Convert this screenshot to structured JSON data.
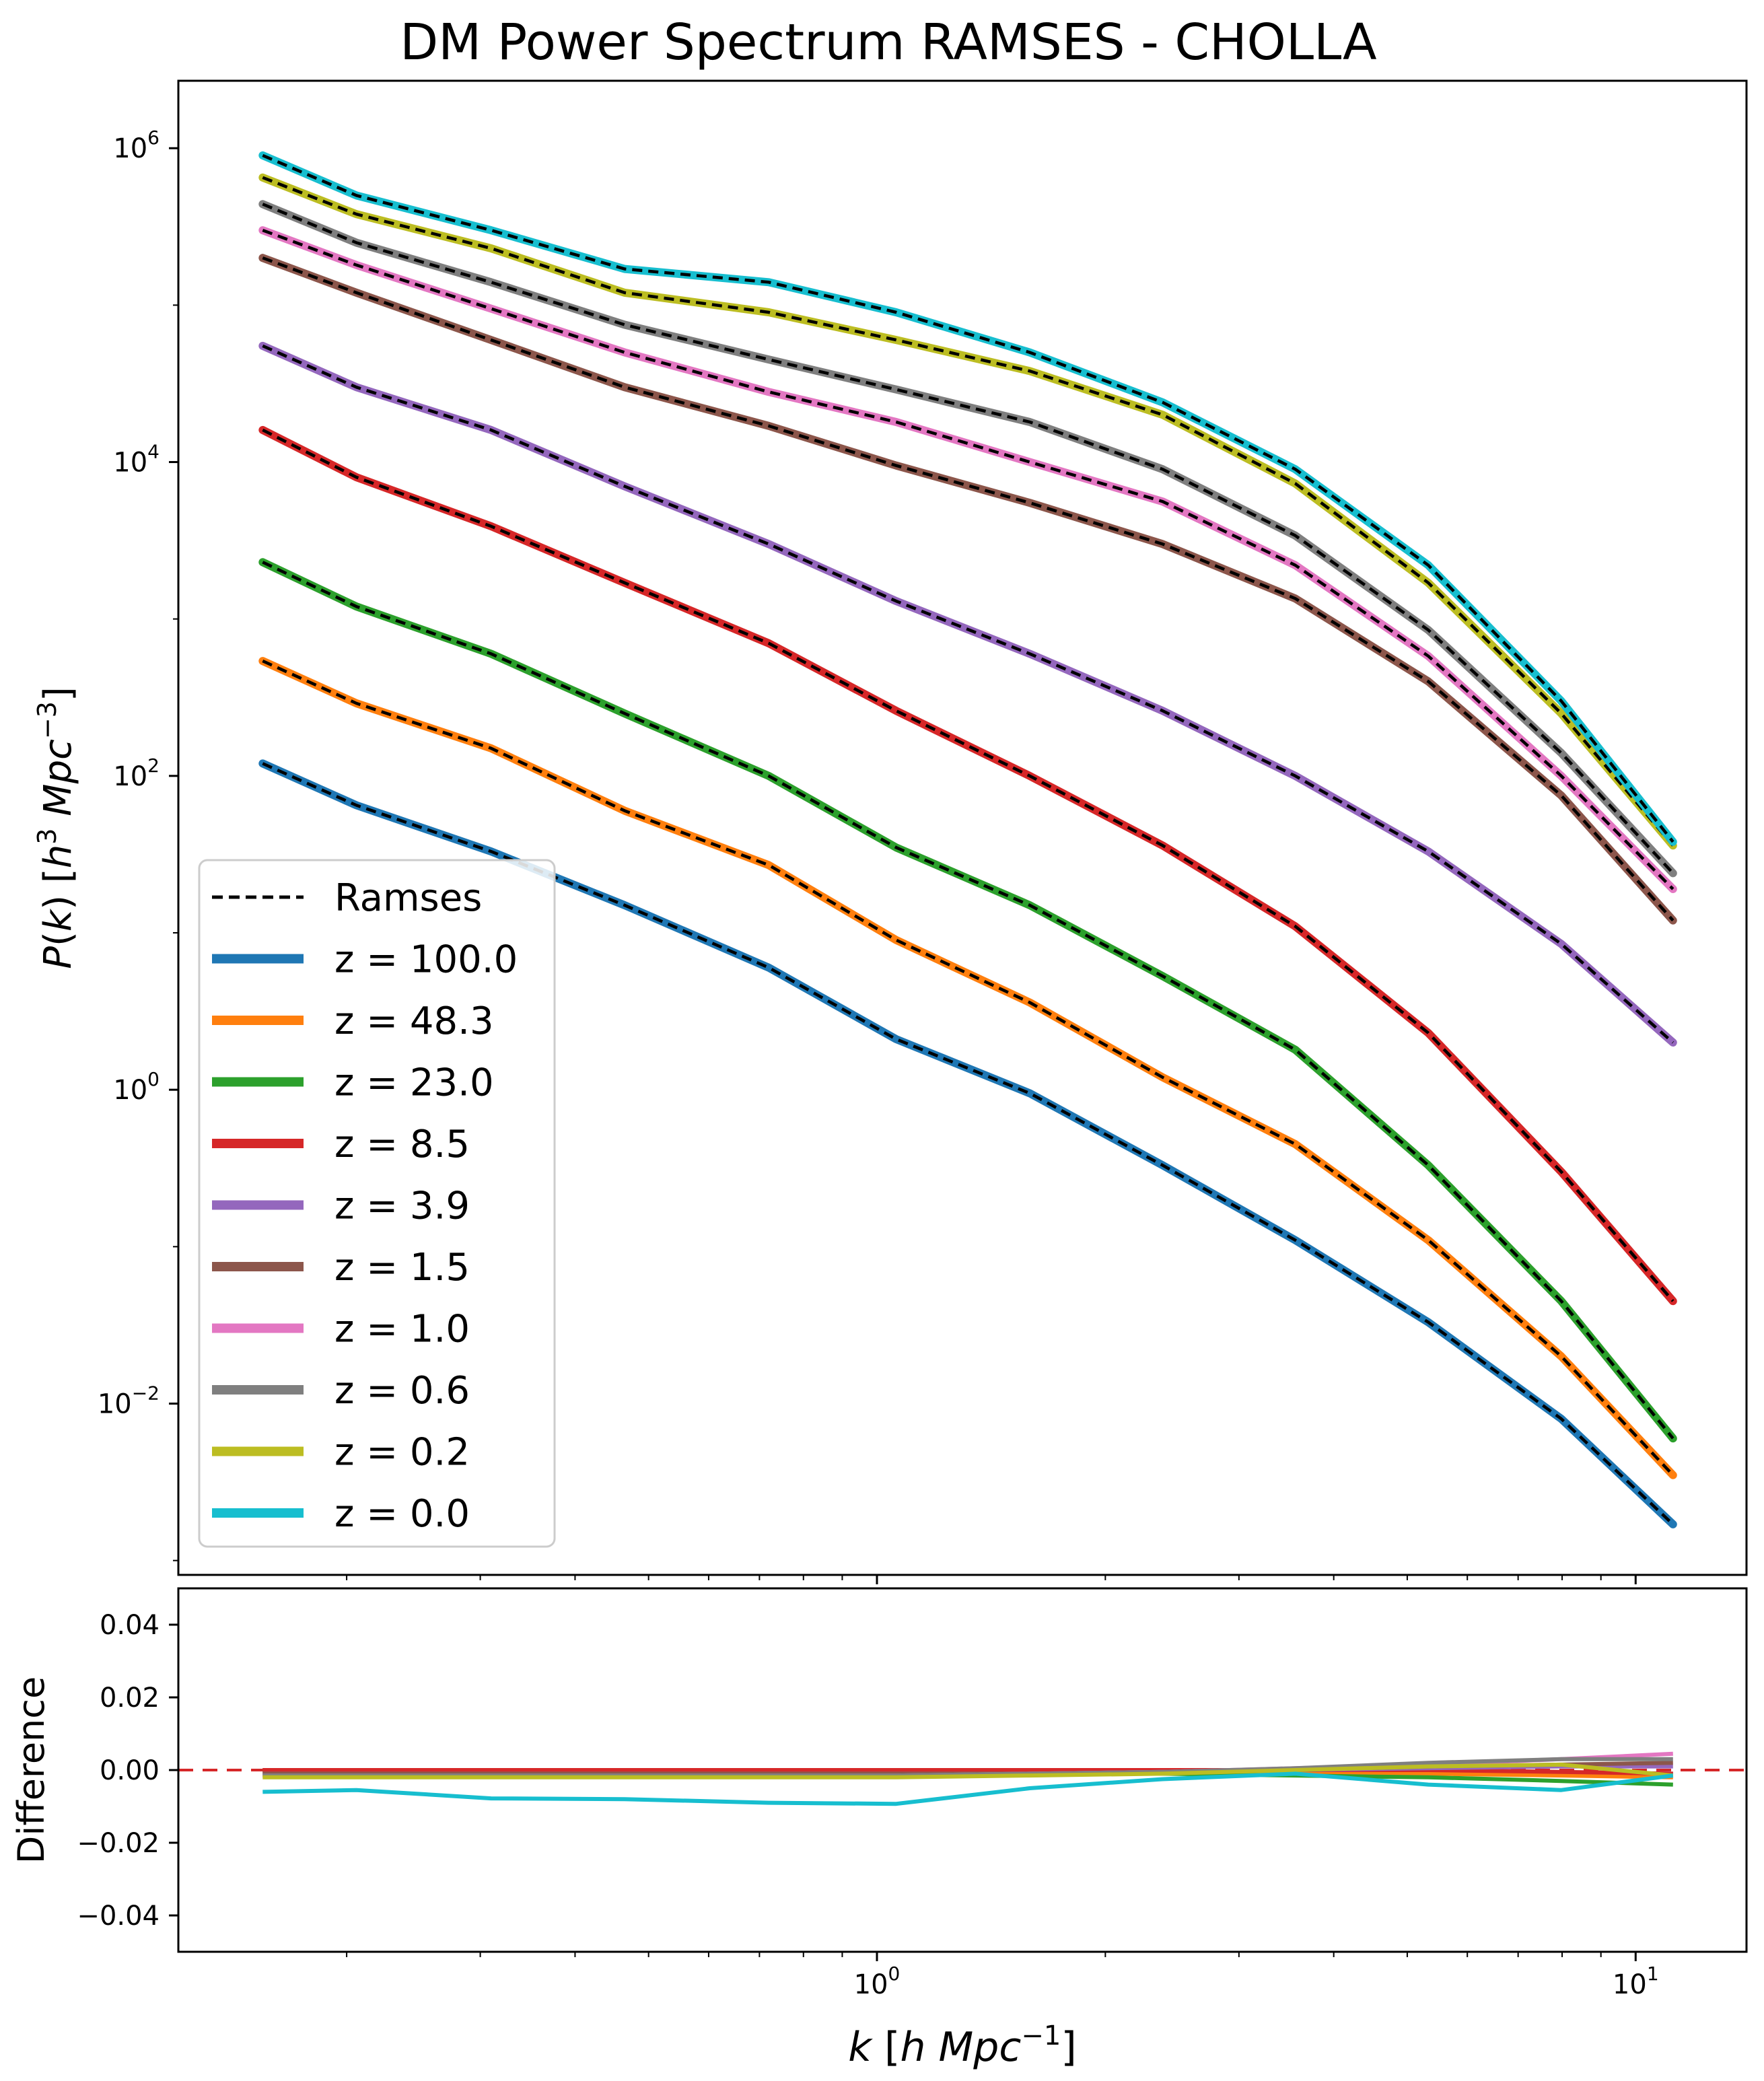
{
  "figure": {
    "title": "DM Power Spectrum RAMSES - CHOLLA"
  },
  "chart_data": [
    {
      "type": "line",
      "panel": "top",
      "title": "DM Power Spectrum RAMSES - CHOLLA",
      "xlabel": "k [h Mpc^-1]",
      "ylabel": "P(k) [h^3 Mpc^-3]",
      "xscale": "log",
      "yscale": "log",
      "xlim": [
        0.12,
        14.0
      ],
      "ylim": [
        0.00081,
        2690000
      ],
      "grid": false,
      "legend_position": "lower-left",
      "yticks": [
        {
          "value": 1000000,
          "base": "10",
          "exp": "6"
        },
        {
          "value": 10000,
          "base": "10",
          "exp": "4"
        },
        {
          "value": 100,
          "base": "10",
          "exp": "2"
        },
        {
          "value": 1,
          "base": "10",
          "exp": "0"
        },
        {
          "value": 0.01,
          "base": "10",
          "exp": "−2"
        }
      ],
      "x": [
        0.155,
        0.206,
        0.31,
        0.465,
        0.72,
        1.06,
        1.59,
        2.38,
        3.56,
        5.33,
        7.98,
        11.2
      ],
      "reference": {
        "name": "Ramses",
        "color": "#000000",
        "style": "dashed"
      },
      "series": [
        {
          "name": "z = 100.0",
          "color": "#1f77b4",
          "values": [
            120,
            65,
            33,
            15,
            6,
            2.1,
            0.95,
            0.33,
            0.11,
            0.033,
            0.008,
            0.0017
          ]
        },
        {
          "name": "z = 48.3",
          "color": "#ff7f0e",
          "values": [
            540,
            290,
            150,
            60,
            27,
            9,
            3.6,
            1.2,
            0.45,
            0.11,
            0.02,
            0.0035
          ]
        },
        {
          "name": "z = 23.0",
          "color": "#2ca02c",
          "values": [
            2300,
            1200,
            600,
            250,
            100,
            35,
            15,
            5.3,
            1.8,
            0.33,
            0.045,
            0.006
          ]
        },
        {
          "name": "z = 8.5",
          "color": "#d62728",
          "values": [
            16000,
            8000,
            3900,
            1700,
            700,
            260,
            100,
            36,
            11,
            2.3,
            0.3,
            0.045
          ]
        },
        {
          "name": "z = 3.9",
          "color": "#9467bd",
          "values": [
            55000,
            30000,
            16000,
            7000,
            3000,
            1300,
            600,
            260,
            100,
            33,
            8.5,
            2
          ]
        },
        {
          "name": "z = 1.5",
          "color": "#8c564b",
          "values": [
            200000,
            120000,
            60000,
            30000,
            17000,
            9500,
            5500,
            3000,
            1350,
            400,
            75,
            12
          ]
        },
        {
          "name": "z = 1.0",
          "color": "#e377c2",
          "values": [
            300000,
            180000,
            95000,
            50000,
            28000,
            18000,
            10000,
            5600,
            2200,
            580,
            100,
            19
          ]
        },
        {
          "name": "z = 0.6",
          "color": "#7f7f7f",
          "values": [
            440000,
            250000,
            140000,
            75000,
            45000,
            29000,
            18000,
            9000,
            3400,
            850,
            140,
            24
          ]
        },
        {
          "name": "z = 0.2",
          "color": "#bcbd22",
          "values": [
            650000,
            380000,
            230000,
            120000,
            90000,
            60000,
            38000,
            20000,
            7300,
            1700,
            250,
            36
          ]
        },
        {
          "name": "z = 0.0",
          "color": "#17becf",
          "values": [
            900000,
            500000,
            300000,
            170000,
            140000,
            90000,
            50000,
            24000,
            9000,
            2200,
            300,
            38
          ]
        }
      ]
    },
    {
      "type": "line",
      "panel": "bottom",
      "xlabel": "k [h Mpc^-1]",
      "ylabel": "Difference",
      "xscale": "log",
      "xlim": [
        0.12,
        14.0
      ],
      "ylim": [
        -0.05,
        0.05
      ],
      "yticks": [
        {
          "value": 0.04,
          "label": "0.04"
        },
        {
          "value": 0.02,
          "label": "0.02"
        },
        {
          "value": 0,
          "label": "0.00"
        },
        {
          "value": -0.02,
          "label": "−0.02"
        },
        {
          "value": -0.04,
          "label": "−0.04"
        }
      ],
      "xticks": [
        {
          "value": 1,
          "base": "10",
          "exp": "0"
        },
        {
          "value": 10,
          "base": "10",
          "exp": "1"
        }
      ],
      "zero_line": {
        "value": 0,
        "color": "#d62728",
        "style": "dashed"
      },
      "x": [
        0.155,
        0.206,
        0.31,
        0.465,
        0.72,
        1.06,
        1.59,
        2.38,
        3.56,
        5.33,
        7.98,
        11.2
      ],
      "series": [
        {
          "name": "z = 100.0",
          "color": "#1f77b4",
          "values": [
            0,
            0,
            0,
            0,
            0,
            0,
            0,
            0,
            0,
            -0.0005,
            -0.001,
            -0.001
          ]
        },
        {
          "name": "z = 48.3",
          "color": "#ff7f0e",
          "values": [
            0,
            0,
            0,
            0,
            0,
            0,
            0,
            0,
            -0.0005,
            -0.001,
            -0.0015,
            -0.002
          ]
        },
        {
          "name": "z = 23.0",
          "color": "#2ca02c",
          "values": [
            -0.0005,
            -0.0005,
            -0.0005,
            -0.0005,
            -0.0005,
            -0.0005,
            -0.001,
            -0.001,
            -0.0015,
            -0.002,
            -0.003,
            -0.004
          ]
        },
        {
          "name": "z = 8.5",
          "color": "#d62728",
          "values": [
            0,
            0,
            0,
            0,
            0,
            0,
            0,
            0,
            0,
            0,
            -0.0005,
            -0.001
          ]
        },
        {
          "name": "z = 3.9",
          "color": "#9467bd",
          "values": [
            -0.001,
            -0.001,
            -0.001,
            -0.001,
            -0.001,
            -0.001,
            -0.001,
            -0.0005,
            0,
            0.0005,
            0.001,
            0.001
          ]
        },
        {
          "name": "z = 1.5",
          "color": "#8c564b",
          "values": [
            -0.001,
            -0.001,
            -0.001,
            -0.001,
            -0.001,
            -0.001,
            -0.001,
            -0.0005,
            0,
            0.001,
            0.0015,
            0.002
          ]
        },
        {
          "name": "z = 1.0",
          "color": "#e377c2",
          "values": [
            -0.0015,
            -0.0015,
            -0.0015,
            -0.0015,
            -0.0015,
            -0.0015,
            -0.001,
            -0.0005,
            0.0005,
            0.0015,
            0.003,
            0.0045
          ]
        },
        {
          "name": "z = 0.6",
          "color": "#7f7f7f",
          "values": [
            -0.0015,
            -0.0015,
            -0.0015,
            -0.0015,
            -0.0015,
            -0.0015,
            -0.001,
            -0.0005,
            0.0005,
            0.002,
            0.003,
            0.003
          ]
        },
        {
          "name": "z = 0.2",
          "color": "#bcbd22",
          "values": [
            -0.002,
            -0.002,
            -0.002,
            -0.002,
            -0.002,
            -0.002,
            -0.0015,
            -0.001,
            0,
            0.001,
            0.0015,
            -0.0015
          ]
        },
        {
          "name": "z = 0.0",
          "color": "#17becf",
          "values": [
            -0.006,
            -0.0055,
            -0.0078,
            -0.008,
            -0.009,
            -0.0093,
            -0.005,
            -0.0025,
            -0.001,
            -0.004,
            -0.0055,
            -0.0015
          ]
        }
      ]
    }
  ]
}
